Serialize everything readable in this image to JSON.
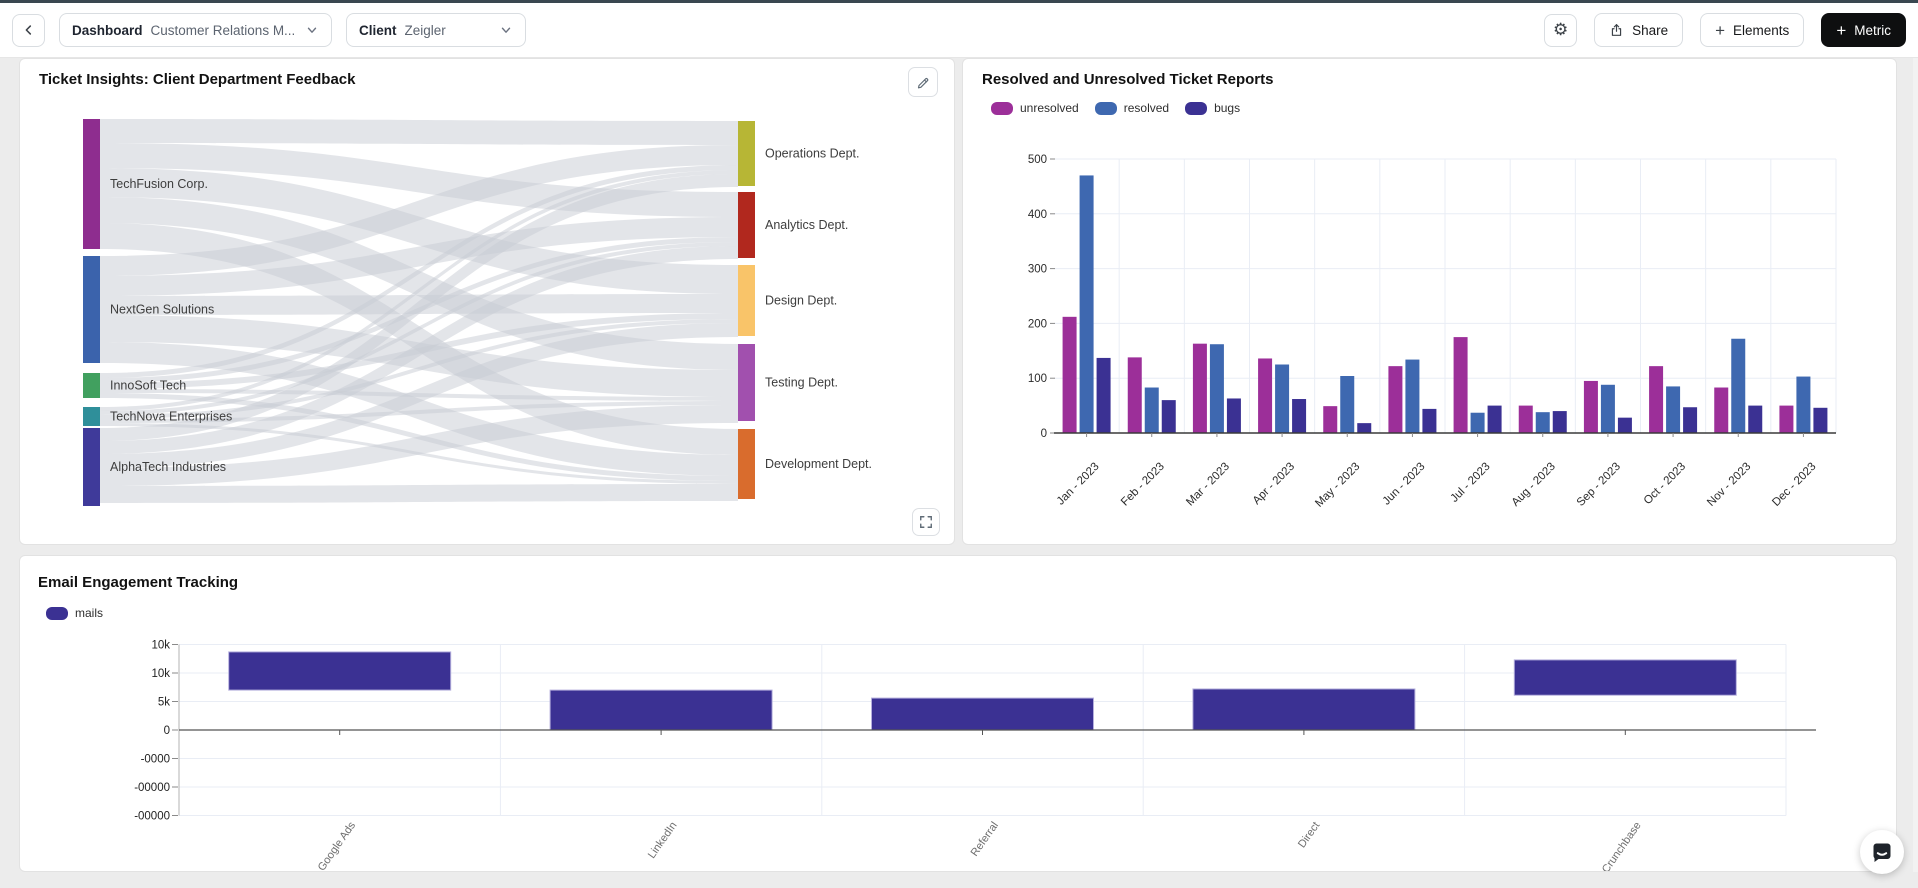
{
  "toolbar": {
    "dashboard_label": "Dashboard",
    "dashboard_value": "Customer Relations M...",
    "client_label": "Client",
    "client_value": "Zeigler",
    "share_label": "Share",
    "elements_label": "Elements",
    "metric_label": "Metric",
    "gear_glyph": "⚙",
    "plus_glyph": "+"
  },
  "sankey_panel": {
    "title": "Ticket Insights: Client Department Feedback"
  },
  "tickets_panel": {
    "title": "Resolved and Unresolved Ticket Reports",
    "legend": [
      "unresolved",
      "resolved",
      "bugs"
    ]
  },
  "email_panel": {
    "title": "Email Engagement Tracking",
    "legend": [
      "mails"
    ]
  },
  "chart_data": [
    {
      "type": "sankey",
      "title": "Ticket Insights: Client Department Feedback",
      "link_color": "#c7ccd4",
      "sources": [
        {
          "name": "TechFusion Corp.",
          "color": "#8e2d8f",
          "y": 60,
          "h": 130
        },
        {
          "name": "NextGen Solutions",
          "color": "#3b63ac",
          "y": 197,
          "h": 107
        },
        {
          "name": "InnoSoft Tech",
          "color": "#41a05f",
          "y": 314,
          "h": 25
        },
        {
          "name": "TechNova Enterprises",
          "color": "#2f8f9a",
          "y": 348,
          "h": 19
        },
        {
          "name": "AlphaTech Industries",
          "color": "#3f3a9a",
          "y": 369,
          "h": 78
        }
      ],
      "targets": [
        {
          "name": "Operations Dept.",
          "color": "#b7b635",
          "y": 62,
          "h": 65
        },
        {
          "name": "Analytics Dept.",
          "color": "#b1281e",
          "y": 133,
          "h": 66
        },
        {
          "name": "Design Dept.",
          "color": "#f9c469",
          "y": 206,
          "h": 71
        },
        {
          "name": "Testing Dept.",
          "color": "#a150ae",
          "y": 285,
          "h": 77
        },
        {
          "name": "Development Dept.",
          "color": "#d96c2d",
          "y": 370,
          "h": 70
        }
      ],
      "links_matrix": [
        [
          24,
          25,
          29,
          26,
          26
        ],
        [
          20,
          20,
          19,
          27,
          21
        ],
        [
          5,
          5,
          6,
          4,
          5
        ],
        [
          4,
          4,
          4,
          4,
          3
        ],
        [
          13,
          13,
          14,
          18,
          17
        ]
      ]
    },
    {
      "type": "bar",
      "title": "Resolved and Unresolved Ticket Reports",
      "categories": [
        "Jan - 2023",
        "Feb - 2023",
        "Mar - 2023",
        "Apr - 2023",
        "May - 2023",
        "Jun - 2023",
        "Jul - 2023",
        "Aug - 2023",
        "Sep - 2023",
        "Oct - 2023",
        "Nov - 2023",
        "Dec - 2023"
      ],
      "series": [
        {
          "name": "unresolved",
          "color": "#9c2f99",
          "values": [
            212,
            138,
            163,
            136,
            49,
            122,
            175,
            50,
            95,
            122,
            83,
            50
          ]
        },
        {
          "name": "resolved",
          "color": "#3e68b0",
          "values": [
            470,
            83,
            162,
            125,
            104,
            134,
            37,
            38,
            88,
            85,
            172,
            103
          ]
        },
        {
          "name": "bugs",
          "color": "#3b3193",
          "values": [
            137,
            60,
            63,
            62,
            18,
            44,
            50,
            40,
            28,
            47,
            50,
            46
          ]
        }
      ],
      "ylim": [
        0,
        500
      ],
      "yticks": [
        0,
        100,
        200,
        300,
        400,
        500
      ],
      "grid": true,
      "legend_position": "top-left"
    },
    {
      "type": "bar",
      "title": "Email Engagement Tracking",
      "categories": [
        "Google Ads",
        "LinkedIn",
        "Referral",
        "Direct",
        "Crunchbase"
      ],
      "series": [
        {
          "name": "mails",
          "color": "#3b3193",
          "value_ranges": [
            [
              7000,
              13700
            ],
            [
              0,
              7000
            ],
            [
              0,
              5600
            ],
            [
              0,
              7200
            ],
            [
              6100,
              12300
            ]
          ]
        }
      ],
      "y_tick_labels": [
        "10k",
        "10k",
        "5k",
        "0",
        "-0000",
        "-00000",
        "-00000"
      ],
      "grid": true,
      "legend_position": "top-left"
    }
  ]
}
